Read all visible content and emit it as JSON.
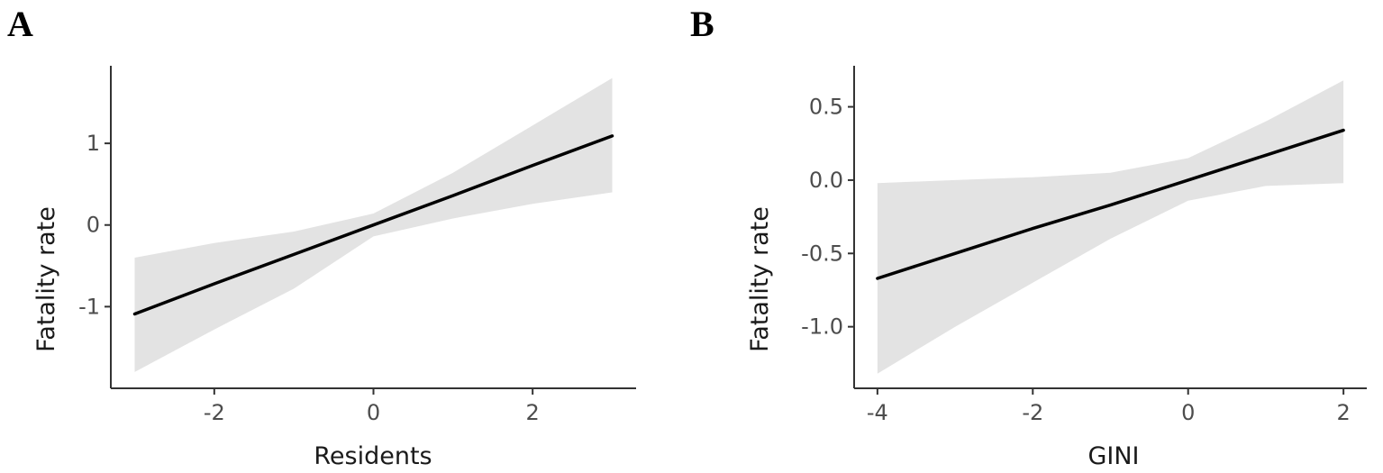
{
  "chart_data": [
    {
      "type": "line",
      "panel_label": "A",
      "xlabel": "Residents",
      "ylabel": "Fatality rate",
      "xlim": [
        -3.3,
        3.3
      ],
      "ylim": [
        -2.0,
        1.95
      ],
      "xticks": [
        -2,
        0,
        2
      ],
      "xtick_labels": [
        "-2",
        "0",
        "2"
      ],
      "yticks": [
        -1,
        0,
        1
      ],
      "ytick_labels": [
        "-1",
        "0",
        "1"
      ],
      "grid": false,
      "series": [
        {
          "x": [
            -3,
            -2,
            -1,
            0,
            1,
            2,
            3
          ],
          "y": [
            -1.09,
            -0.72,
            -0.36,
            0.0,
            0.36,
            0.73,
            1.09
          ],
          "lower": [
            -1.8,
            -1.28,
            -0.78,
            -0.14,
            0.08,
            0.26,
            0.4
          ],
          "upper": [
            -0.4,
            -0.22,
            -0.08,
            0.14,
            0.64,
            1.22,
            1.8
          ]
        }
      ],
      "colors": {
        "line": "#000000",
        "band": "#e3e3e3"
      }
    },
    {
      "type": "line",
      "panel_label": "B",
      "xlabel": "GINI",
      "ylabel": "Fatality rate",
      "xlim": [
        -4.3,
        2.3
      ],
      "ylim": [
        -1.42,
        0.78
      ],
      "xticks": [
        -4,
        -2,
        0,
        2
      ],
      "xtick_labels": [
        "-4",
        "-2",
        "0",
        "2"
      ],
      "yticks": [
        -1.0,
        -0.5,
        0.0,
        0.5
      ],
      "ytick_labels": [
        "-1.0",
        "-0.5",
        "0.0",
        "0.5"
      ],
      "grid": false,
      "series": [
        {
          "x": [
            -4,
            -3,
            -2,
            -1,
            0,
            1,
            2
          ],
          "y": [
            -0.67,
            -0.5,
            -0.33,
            -0.17,
            0.0,
            0.17,
            0.34
          ],
          "lower": [
            -1.32,
            -1.0,
            -0.7,
            -0.4,
            -0.14,
            -0.04,
            -0.02
          ],
          "upper": [
            -0.02,
            0.0,
            0.02,
            0.05,
            0.15,
            0.4,
            0.68
          ]
        }
      ],
      "colors": {
        "line": "#000000",
        "band": "#e3e3e3"
      }
    }
  ]
}
